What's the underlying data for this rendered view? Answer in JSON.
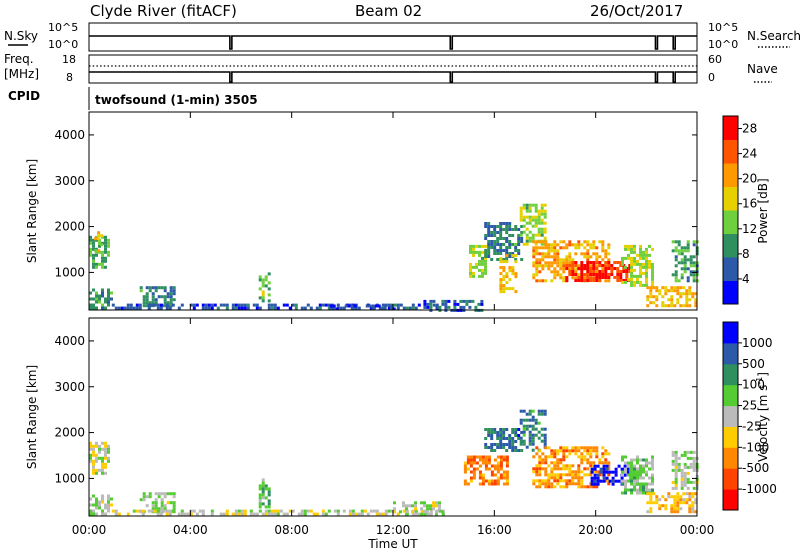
{
  "header": {
    "station": "Clyde River (fitACF)",
    "beam": "Beam 02",
    "date": "26/Oct/2017"
  },
  "status_panels": {
    "nsky_label": "N.Sky",
    "nsearch_label": "N.Search",
    "freq_label": "Freq.",
    "freq_unit": "[MHz]",
    "nave_label": "Nave",
    "cpid_label": "CPID",
    "cpid_text": "twofsound (1-min) 3505",
    "noise_left_ticks": [
      "10^5",
      "10^0"
    ],
    "noise_right_ticks": [
      "10^5",
      "10^0"
    ],
    "freq_ticks": [
      "18",
      "8"
    ],
    "nave_ticks": [
      "60",
      "0"
    ]
  },
  "colors": {
    "power_scale": [
      "#0000ff",
      "#2d5aa8",
      "#2f8f5f",
      "#6fcf3f",
      "#e6d000",
      "#ff9900",
      "#ff5500",
      "#ff0000"
    ],
    "velocity_scale": [
      "#ff0000",
      "#ff4400",
      "#ff8800",
      "#ffcc00",
      "#bbbbbb",
      "#55cc33",
      "#2f8f5f",
      "#2d5aa8",
      "#0000ff"
    ]
  },
  "chart_data": [
    {
      "type": "heatmap",
      "panel": "power",
      "ylabel": "Slant Range [km]",
      "xlabel": "",
      "xlim": [
        "00:00",
        "00:00"
      ],
      "ylim": [
        180,
        4500
      ],
      "x_ticks": [
        "00:00",
        "04:00",
        "08:00",
        "12:00",
        "16:00",
        "20:00",
        "00:00"
      ],
      "y_ticks": [
        1000,
        2000,
        3000,
        4000
      ],
      "colorbar": {
        "label": "Power [dB]",
        "ticks": [
          "4",
          "8",
          "12",
          "16",
          "20",
          "24",
          "28"
        ],
        "range": [
          0,
          30
        ]
      },
      "regions": [
        {
          "t": [
            0.0,
            0.9
          ],
          "r": [
            250,
            650
          ],
          "value": 9
        },
        {
          "t": [
            0.0,
            0.8
          ],
          "r": [
            1100,
            1800
          ],
          "value": 11
        },
        {
          "t": [
            0.2,
            0.5
          ],
          "r": [
            1500,
            1900
          ],
          "value": 16
        },
        {
          "t": [
            2.0,
            3.4
          ],
          "r": [
            250,
            700
          ],
          "value": 8
        },
        {
          "t": [
            6.7,
            7.1
          ],
          "r": [
            350,
            1000
          ],
          "value": 12
        },
        {
          "t": [
            0.9,
            14.0
          ],
          "r": [
            200,
            320
          ],
          "value": 5
        },
        {
          "t": [
            9.5,
            12.0
          ],
          "r": [
            200,
            300
          ],
          "value": 4
        },
        {
          "t": [
            13.2,
            15.5
          ],
          "r": [
            200,
            400
          ],
          "value": 6
        },
        {
          "t": [
            15.0,
            15.6
          ],
          "r": [
            900,
            1600
          ],
          "value": 14
        },
        {
          "t": [
            15.6,
            17.1
          ],
          "r": [
            1300,
            2100
          ],
          "value": 8
        },
        {
          "t": [
            16.2,
            16.8
          ],
          "r": [
            600,
            1400
          ],
          "value": 18
        },
        {
          "t": [
            17.0,
            18.0
          ],
          "r": [
            1600,
            2500
          ],
          "value": 14
        },
        {
          "t": [
            17.5,
            20.5
          ],
          "r": [
            800,
            1700
          ],
          "value": 20
        },
        {
          "t": [
            18.8,
            21.3
          ],
          "r": [
            800,
            1250
          ],
          "value": 27
        },
        {
          "t": [
            21.0,
            22.2
          ],
          "r": [
            700,
            1600
          ],
          "value": 15
        },
        {
          "t": [
            22.0,
            24.0
          ],
          "r": [
            250,
            700
          ],
          "value": 19
        },
        {
          "t": [
            23.0,
            24.0
          ],
          "r": [
            800,
            1700
          ],
          "value": 10
        }
      ]
    },
    {
      "type": "heatmap",
      "panel": "velocity",
      "ylabel": "Slant Range [km]",
      "xlabel": "Time UT",
      "xlim": [
        "00:00",
        "00:00"
      ],
      "ylim": [
        180,
        4500
      ],
      "x_ticks": [
        "00:00",
        "04:00",
        "08:00",
        "12:00",
        "16:00",
        "20:00",
        "00:00"
      ],
      "y_ticks": [
        1000,
        2000,
        3000,
        4000
      ],
      "colorbar": {
        "label": "Velocity [m s^-1]",
        "ticks": [
          "1000",
          "500",
          "100",
          "25",
          "-25",
          "-100",
          "-500",
          "-1000"
        ],
        "range": [
          -1200,
          1200
        ]
      },
      "regions": [
        {
          "t": [
            0.0,
            0.9
          ],
          "r": [
            250,
            650
          ],
          "value": 60
        },
        {
          "t": [
            0.0,
            0.8
          ],
          "r": [
            1100,
            1800
          ],
          "value": -60
        },
        {
          "t": [
            2.0,
            3.4
          ],
          "r": [
            250,
            700
          ],
          "value": 120
        },
        {
          "t": [
            6.7,
            7.1
          ],
          "r": [
            350,
            1000
          ],
          "value": 300
        },
        {
          "t": [
            0.9,
            14.0
          ],
          "r": [
            200,
            320
          ],
          "value": -40
        },
        {
          "t": [
            12.0,
            14.0
          ],
          "r": [
            200,
            500
          ],
          "value": 60
        },
        {
          "t": [
            14.8,
            16.5
          ],
          "r": [
            900,
            1500
          ],
          "value": -600
        },
        {
          "t": [
            15.6,
            17.1
          ],
          "r": [
            1600,
            2100
          ],
          "value": 700
        },
        {
          "t": [
            17.0,
            18.0
          ],
          "r": [
            1600,
            2500
          ],
          "value": 600
        },
        {
          "t": [
            17.5,
            20.5
          ],
          "r": [
            800,
            1700
          ],
          "value": -500
        },
        {
          "t": [
            19.8,
            21.6
          ],
          "r": [
            850,
            1300
          ],
          "value": 1100
        },
        {
          "t": [
            21.0,
            22.2
          ],
          "r": [
            700,
            1500
          ],
          "value": 200
        },
        {
          "t": [
            22.0,
            24.0
          ],
          "r": [
            250,
            700
          ],
          "value": -300
        },
        {
          "t": [
            23.0,
            24.0
          ],
          "r": [
            800,
            1600
          ],
          "value": 80
        }
      ]
    }
  ]
}
